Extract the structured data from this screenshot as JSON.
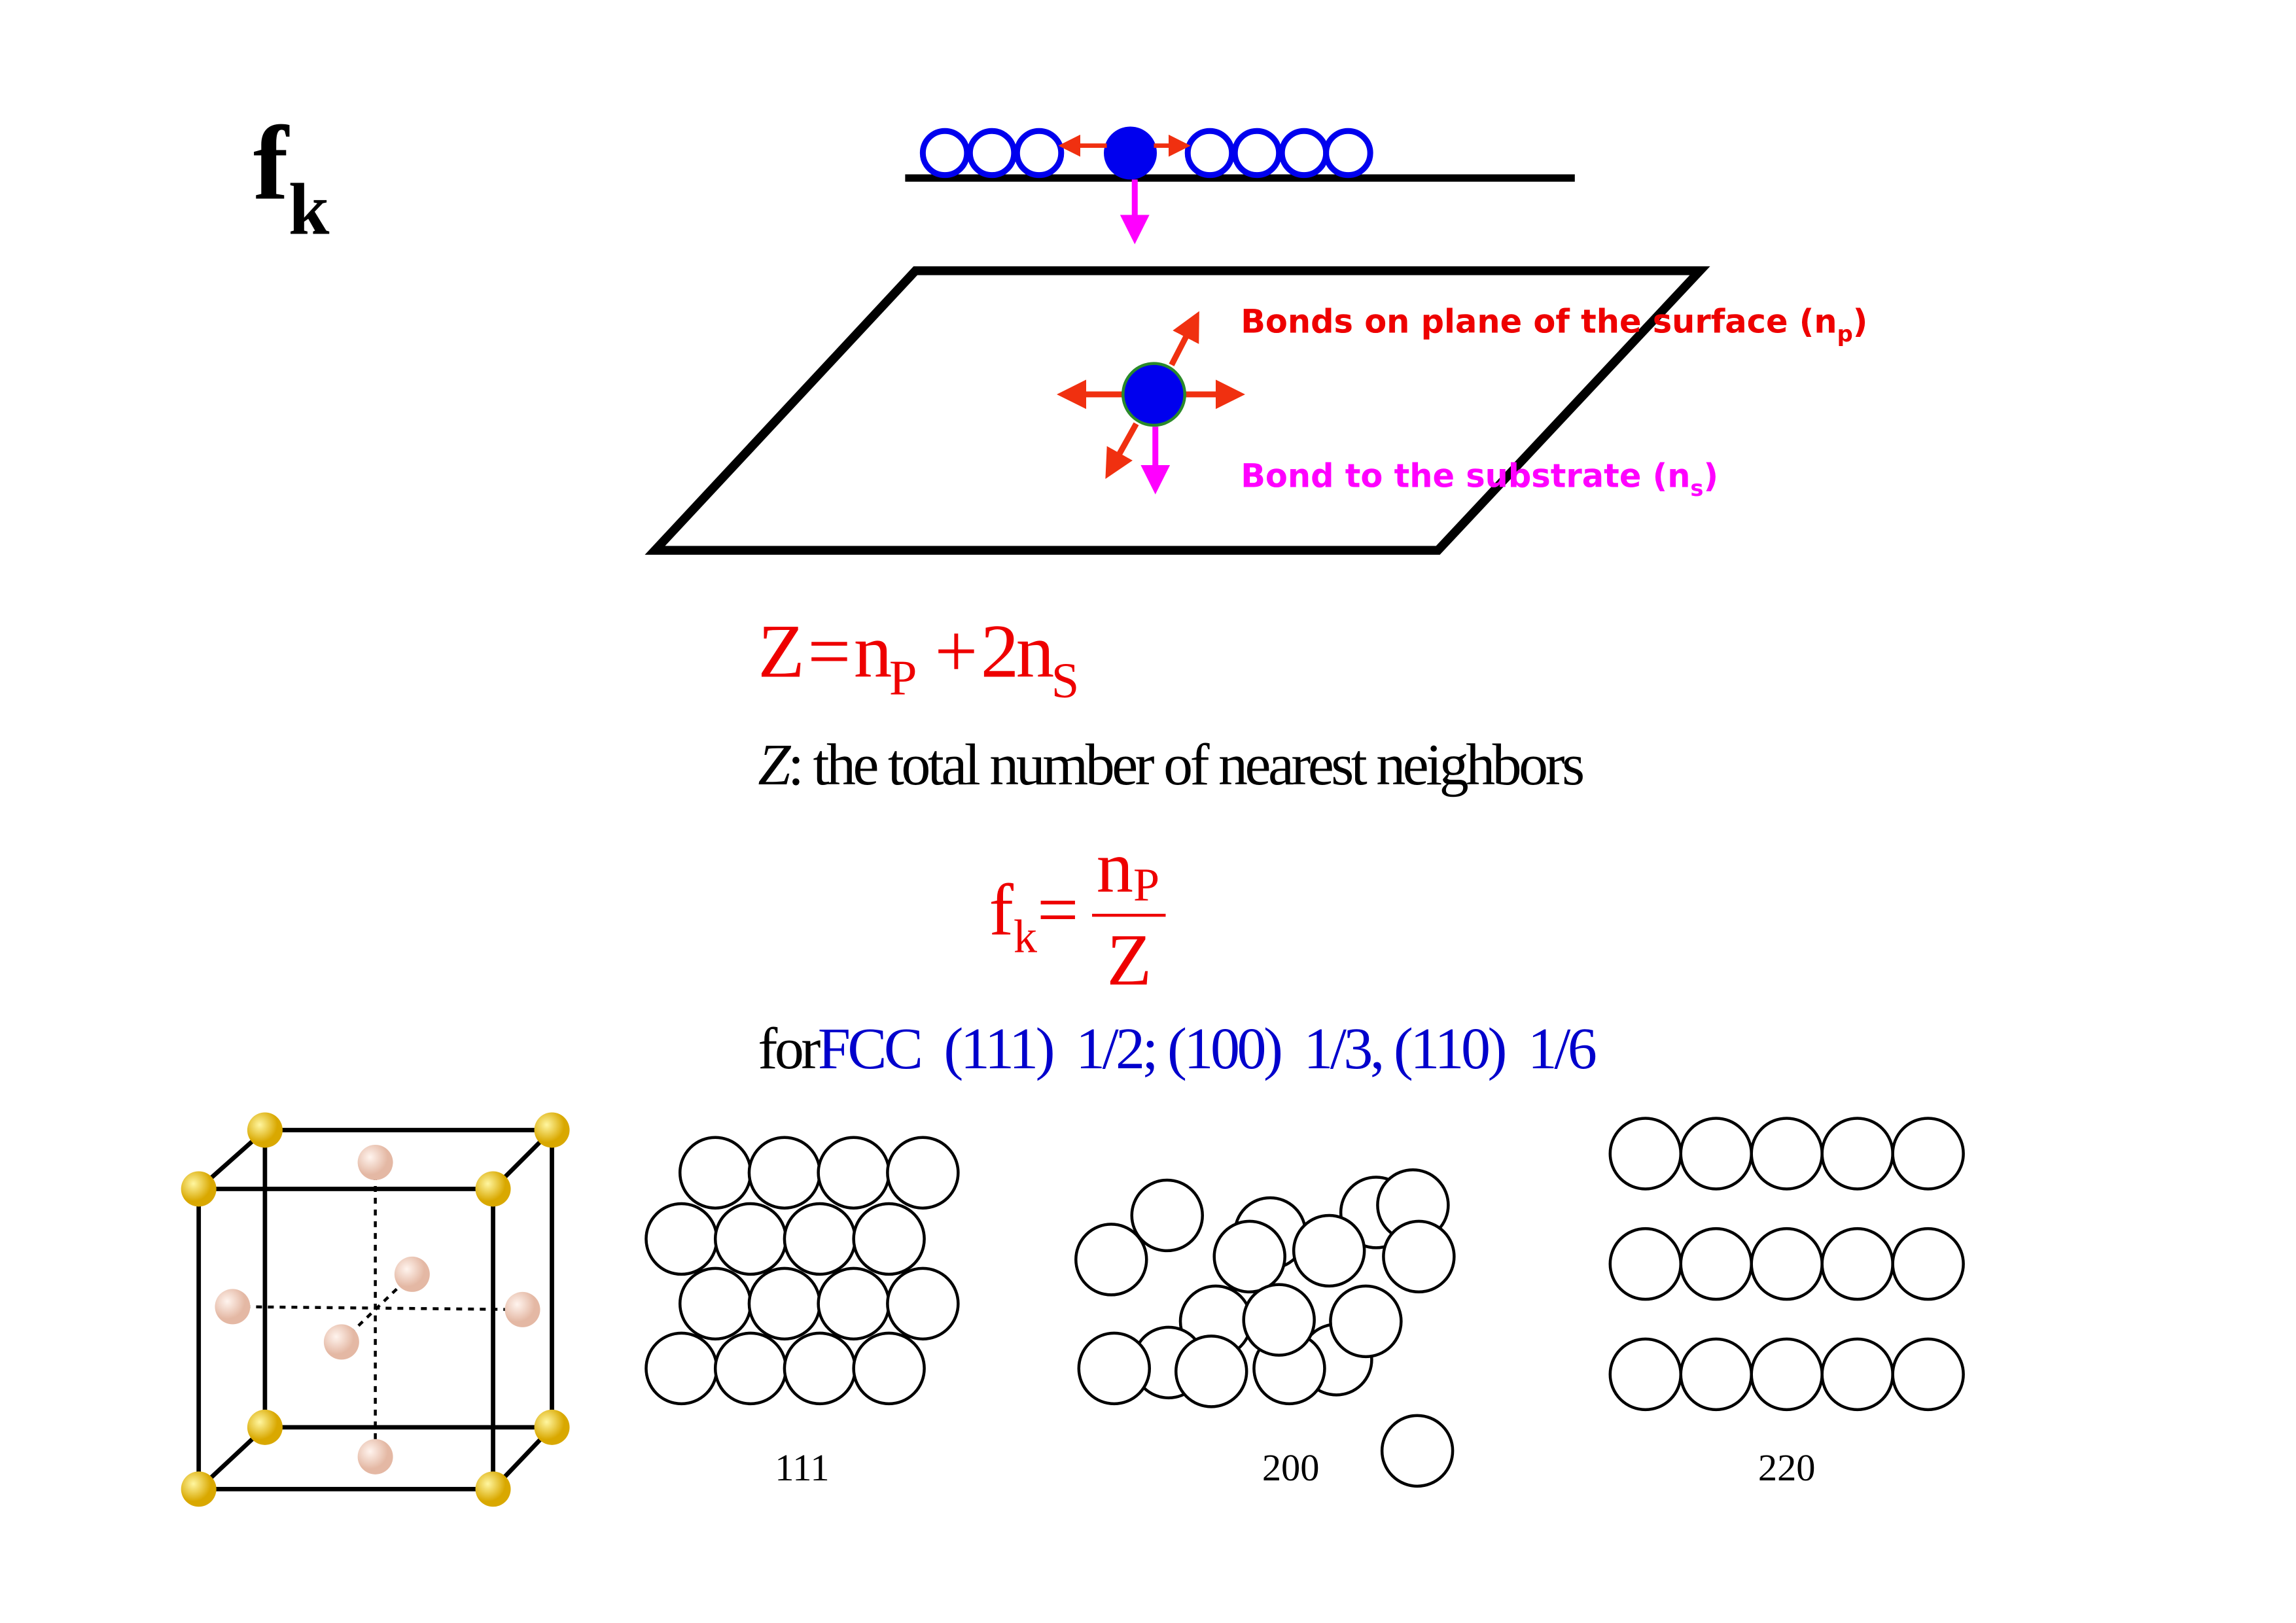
{
  "title": {
    "main": "f",
    "sub": "k"
  },
  "labels": {
    "plane": {
      "text": "Bonds on plane of the surface (n",
      "sub": "p",
      "end": ")"
    },
    "substrate": {
      "text": "Bond to the substrate (n",
      "sub": "s",
      "end": ")"
    }
  },
  "equation": {
    "lhs": "Z",
    "eq": "=",
    "n1": "n",
    "s1": "P",
    "plus": "+",
    "n2": "2n",
    "s2": "S"
  },
  "definition": {
    "symbol": "Z",
    "text": ": the total number of nearest neighbors"
  },
  "fk": {
    "f": "f",
    "sub": "k",
    "eq": "=",
    "num": "n",
    "num_sub": "P",
    "den": "Z"
  },
  "fcc": {
    "lead": "for",
    "text": "FCC  (111)  1/2; (100)  1/3, (110)  1/6"
  },
  "planes": [
    "111",
    "200",
    "220"
  ]
}
